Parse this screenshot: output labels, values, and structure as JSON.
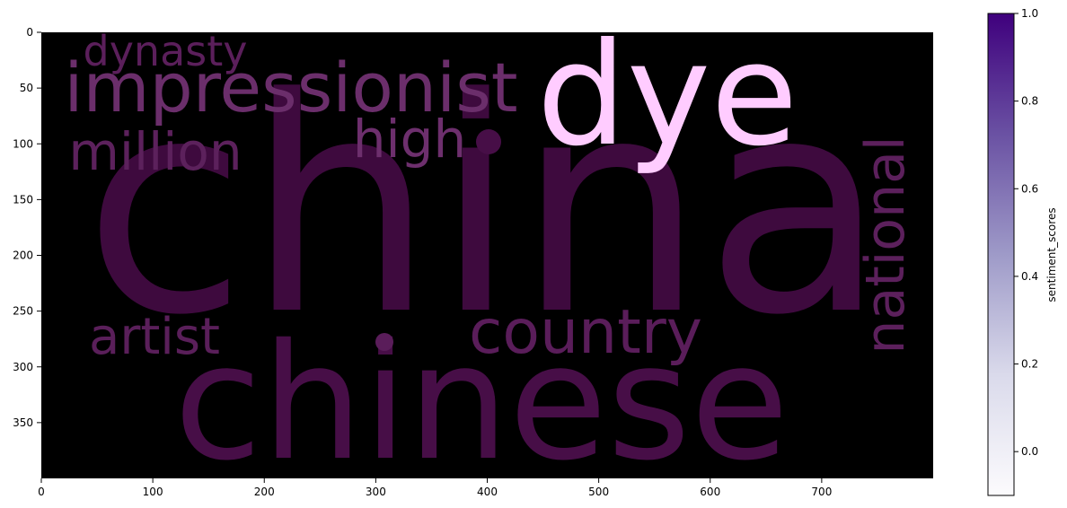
{
  "chart_data": [
    {
      "type": "wordcloud",
      "title": "",
      "xlabel": "",
      "ylabel": "",
      "xlim": [
        0,
        800
      ],
      "ylim": [
        400,
        0
      ],
      "xticks": [
        0,
        100,
        200,
        300,
        400,
        500,
        600,
        700
      ],
      "yticks": [
        0,
        50,
        100,
        150,
        200,
        250,
        300,
        350
      ],
      "grid": false,
      "background": "#000000",
      "words": [
        {
          "text": "china",
          "size": 1.0,
          "orientation": "horizontal",
          "color": "#3e0a3e"
        },
        {
          "text": "chinese",
          "size": 0.62,
          "orientation": "horizontal",
          "color": "#470e47"
        },
        {
          "text": "dye",
          "size": 0.5,
          "orientation": "horizontal",
          "color": "#ffccff"
        },
        {
          "text": "impressionist",
          "size": 0.28,
          "orientation": "horizontal",
          "color": "#6b2e6b"
        },
        {
          "text": "country",
          "size": 0.27,
          "orientation": "horizontal",
          "color": "#5a1d5a"
        },
        {
          "text": "national",
          "size": 0.23,
          "orientation": "vertical",
          "color": "#5c205c"
        },
        {
          "text": "high",
          "size": 0.22,
          "orientation": "horizontal",
          "color": "#6d2f6d"
        },
        {
          "text": "million",
          "size": 0.21,
          "orientation": "horizontal",
          "color": "#5c215c"
        },
        {
          "text": "artist",
          "size": 0.21,
          "orientation": "horizontal",
          "color": "#5a1f5a"
        },
        {
          "text": "dynasty",
          "size": 0.17,
          "orientation": "horizontal",
          "color": "#5b1f5b"
        },
        {
          "text": "•",
          "size": 0.2,
          "orientation": "horizontal",
          "color": "#470e47"
        },
        {
          "text": "•",
          "size": 0.16,
          "orientation": "horizontal",
          "color": "#5a1d5a"
        }
      ]
    },
    {
      "type": "colorbar",
      "label": "sentiment_scores",
      "range": [
        -0.1,
        1.0
      ],
      "ticks": [
        0.0,
        0.2,
        0.4,
        0.6,
        0.8,
        1.0
      ],
      "tick_labels": [
        "0.0",
        "0.2",
        "0.4",
        "0.6",
        "0.8",
        "1.0"
      ],
      "colormap": "Purples",
      "colors": [
        "#fcfbfd",
        "#dadaeb",
        "#9e9ac8",
        "#6a51a3",
        "#3f007d"
      ]
    }
  ]
}
